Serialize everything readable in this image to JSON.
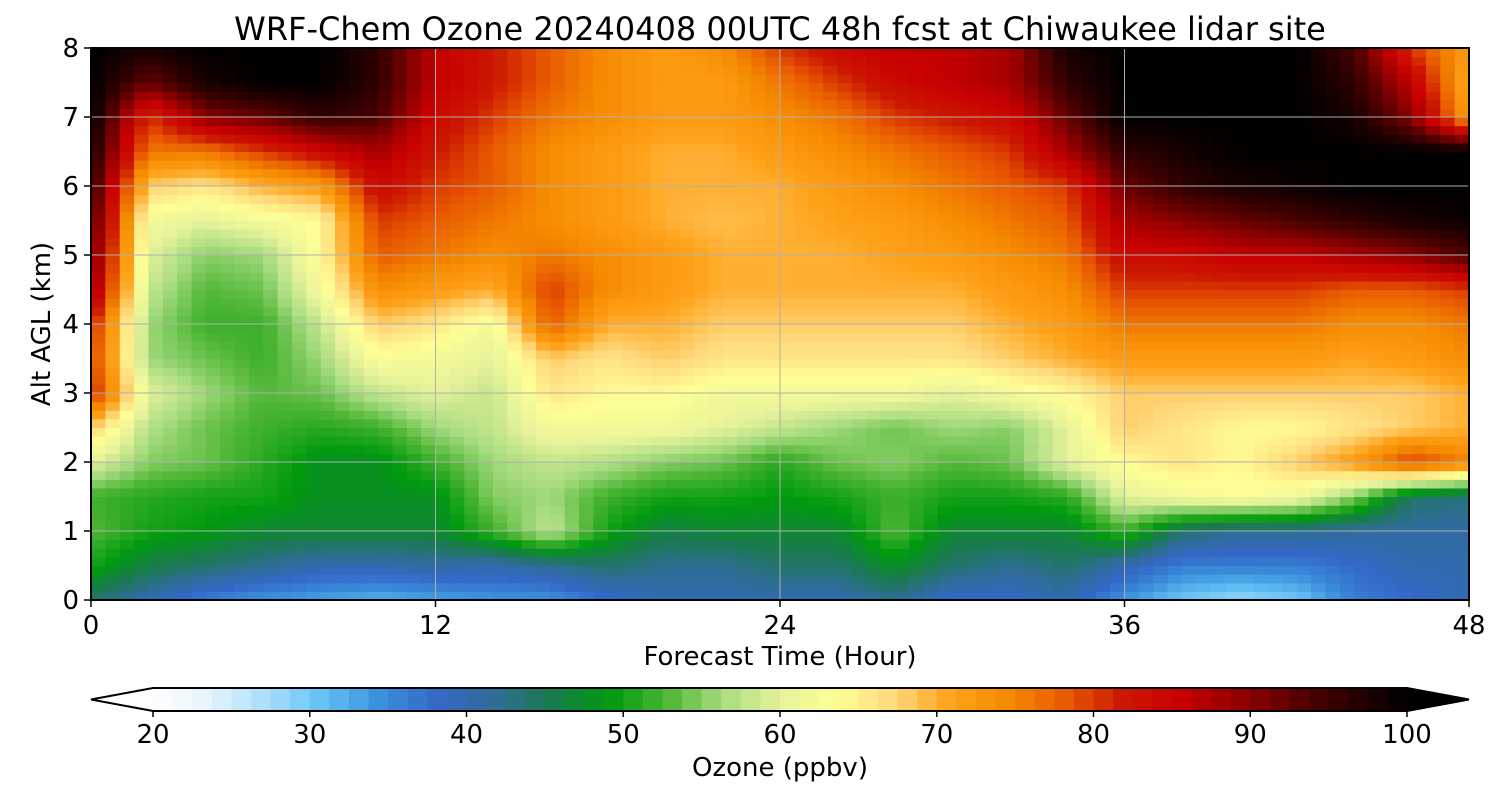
{
  "chart_data": {
    "type": "heatmap",
    "title": "WRF-Chem Ozone  20240408 00UTC 48h fcst at Chiwaukee lidar site",
    "xlabel": "Forecast Time (Hour)",
    "ylabel": "Alt AGL (km)",
    "xlim": [
      0,
      48
    ],
    "ylim": [
      0,
      8
    ],
    "x_ticks": [
      "0",
      "12",
      "24",
      "36",
      "48"
    ],
    "y_ticks": [
      "0",
      "1",
      "2",
      "3",
      "4",
      "5",
      "6",
      "7",
      "8"
    ],
    "grid": true,
    "x": [
      0,
      2,
      4,
      6,
      8,
      10,
      12,
      14,
      16,
      18,
      20,
      22,
      24,
      26,
      28,
      30,
      32,
      34,
      36,
      38,
      40,
      42,
      44,
      46,
      48
    ],
    "y": [
      0,
      0.5,
      1,
      1.5,
      2,
      2.5,
      3,
      3.5,
      4,
      4.5,
      5,
      5.5,
      6,
      6.5,
      7,
      7.5,
      8
    ],
    "z": [
      [
        44,
        40,
        36,
        34,
        33,
        32,
        33,
        34,
        34,
        38,
        40,
        40,
        40,
        40,
        42,
        38,
        38,
        40,
        34,
        30,
        28,
        30,
        36,
        38,
        40
      ],
      [
        50,
        46,
        44,
        42,
        40,
        40,
        41,
        40,
        42,
        44,
        42,
        42,
        44,
        44,
        48,
        44,
        42,
        44,
        40,
        36,
        36,
        36,
        38,
        40,
        40
      ],
      [
        53,
        50,
        49,
        47,
        47,
        47,
        47,
        52,
        58,
        50,
        46,
        47,
        47,
        47,
        53,
        47,
        47,
        47,
        52,
        44,
        42,
        42,
        41,
        41,
        41
      ],
      [
        52,
        51,
        50,
        50,
        48,
        48,
        48,
        55,
        56,
        52,
        50,
        50,
        49,
        50,
        52,
        50,
        50,
        51,
        60,
        62,
        63,
        62,
        55,
        44,
        43
      ],
      [
        60,
        55,
        54,
        51,
        48,
        48,
        52,
        56,
        58,
        57,
        55,
        54,
        51,
        54,
        55,
        53,
        54,
        60,
        64,
        66,
        64,
        68,
        72,
        80,
        75
      ],
      [
        68,
        57,
        54,
        52,
        51,
        52,
        56,
        58,
        62,
        62,
        62,
        60,
        58,
        56,
        54,
        56,
        55,
        60,
        68,
        66,
        64,
        64,
        66,
        68,
        70
      ],
      [
        82,
        60,
        56,
        53,
        54,
        58,
        60,
        58,
        66,
        64,
        64,
        62,
        62,
        62,
        62,
        60,
        62,
        64,
        68,
        68,
        68,
        68,
        68,
        68,
        70
      ],
      [
        80,
        56,
        54,
        52,
        56,
        63,
        62,
        60,
        68,
        66,
        68,
        66,
        66,
        66,
        66,
        66,
        68,
        70,
        72,
        72,
        72,
        72,
        71,
        72,
        74
      ],
      [
        82,
        56,
        52,
        52,
        58,
        68,
        66,
        62,
        78,
        70,
        70,
        68,
        68,
        68,
        68,
        68,
        70,
        72,
        76,
        76,
        76,
        76,
        74,
        74,
        76
      ],
      [
        90,
        58,
        53,
        54,
        62,
        74,
        72,
        70,
        80,
        74,
        72,
        70,
        70,
        70,
        70,
        70,
        72,
        74,
        80,
        80,
        80,
        80,
        78,
        78,
        80
      ],
      [
        92,
        60,
        55,
        56,
        64,
        78,
        76,
        74,
        76,
        74,
        72,
        70,
        70,
        70,
        71,
        72,
        74,
        76,
        84,
        84,
        86,
        86,
        88,
        90,
        94
      ],
      [
        94,
        62,
        60,
        62,
        64,
        80,
        78,
        76,
        74,
        72,
        70,
        69,
        70,
        71,
        72,
        74,
        76,
        78,
        88,
        90,
        92,
        94,
        96,
        98,
        99
      ],
      [
        96,
        68,
        66,
        70,
        72,
        84,
        80,
        78,
        74,
        72,
        70,
        70,
        70,
        72,
        74,
        76,
        78,
        80,
        92,
        96,
        98,
        99,
        100,
        100,
        100
      ],
      [
        98,
        76,
        76,
        80,
        84,
        88,
        82,
        78,
        74,
        72,
        70,
        70,
        72,
        74,
        76,
        78,
        80,
        88,
        96,
        98,
        100,
        100,
        100,
        100,
        100
      ],
      [
        100,
        80,
        90,
        92,
        96,
        94,
        84,
        80,
        76,
        74,
        72,
        72,
        74,
        76,
        80,
        82,
        84,
        92,
        100,
        100,
        100,
        100,
        98,
        90,
        72
      ],
      [
        100,
        92,
        98,
        100,
        100,
        96,
        86,
        82,
        78,
        74,
        72,
        72,
        76,
        80,
        84,
        86,
        88,
        96,
        100,
        100,
        100,
        100,
        96,
        86,
        70
      ],
      [
        100,
        98,
        100,
        100,
        100,
        96,
        86,
        82,
        78,
        74,
        72,
        74,
        80,
        84,
        86,
        86,
        88,
        98,
        100,
        100,
        100,
        100,
        94,
        80,
        72
      ]
    ],
    "colorbar": {
      "label": "Ozone  (ppbv)",
      "min": 20,
      "max": 100,
      "ticks": [
        "20",
        "30",
        "40",
        "50",
        "60",
        "70",
        "80",
        "90",
        "100"
      ],
      "extend": "both",
      "colors": [
        "#ffffff",
        "#e4f4fc",
        "#a9defa",
        "#62c0f4",
        "#3a8fdc",
        "#3468c8",
        "#2e6d96",
        "#1a7a4e",
        "#009a0e",
        "#4cb534",
        "#a8dc80",
        "#e6f29a",
        "#ffff96",
        "#ffd87a",
        "#ffa21a",
        "#f58a00",
        "#e85a00",
        "#cc1800",
        "#c80000",
        "#980000",
        "#5c0000",
        "#2a0000",
        "#000000"
      ]
    }
  }
}
